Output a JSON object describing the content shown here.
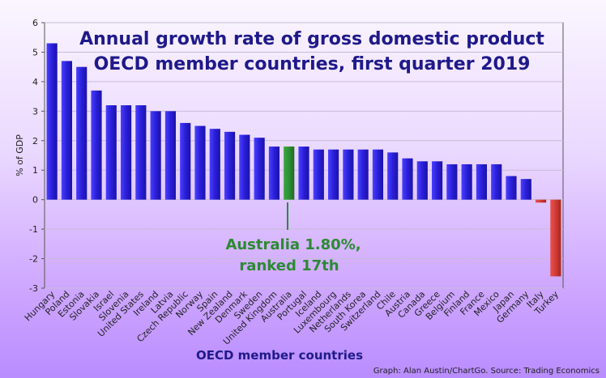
{
  "chart_data": {
    "type": "bar",
    "title_lines": [
      "Annual growth rate of gross domestic product",
      "OECD member countries, first quarter 2019"
    ],
    "xlabel": "OECD member countries",
    "ylabel": "% of GDP",
    "ylim": [
      -3,
      6
    ],
    "yticks": [
      -3,
      -2,
      -1,
      0,
      1,
      2,
      3,
      4,
      5,
      6
    ],
    "grid": true,
    "categories": [
      "Hungary",
      "Poland",
      "Estonia",
      "Slovakia",
      "Israel",
      "Slovenia",
      "United States",
      "Ireland",
      "Latvia",
      "Czech Republic",
      "Norway",
      "Spain",
      "New Zealand",
      "Denmark",
      "Sweden",
      "United Kingdom",
      "Australia",
      "Portugal",
      "Iceland",
      "Luxembourg",
      "Netherlands",
      "South Korea",
      "Switzerland",
      "Chile",
      "Austria",
      "Canada",
      "Greece",
      "Belgium",
      "Finland",
      "France",
      "Mexico",
      "Japan",
      "Germany",
      "Italy",
      "Turkey"
    ],
    "values": [
      5.3,
      4.7,
      4.5,
      3.7,
      3.2,
      3.2,
      3.2,
      3.0,
      3.0,
      2.6,
      2.5,
      2.4,
      2.3,
      2.2,
      2.1,
      1.8,
      1.8,
      1.8,
      1.7,
      1.7,
      1.7,
      1.7,
      1.7,
      1.6,
      1.4,
      1.3,
      1.3,
      1.2,
      1.2,
      1.2,
      1.2,
      0.8,
      0.7,
      -0.1,
      -2.6
    ],
    "highlight": "Australia",
    "colors": {
      "positive_bar": "#2a1fd8",
      "highlight_bar": "#2f8f35",
      "negative_bar": "#d23b36",
      "annotation": "#2c8a32",
      "title": "#1f1a8a"
    },
    "annotation_lines": [
      "Australia 1.80%,",
      "ranked 17th"
    ],
    "source": "Graph: Alan Austin/ChartGo. Source: Trading Economics"
  }
}
